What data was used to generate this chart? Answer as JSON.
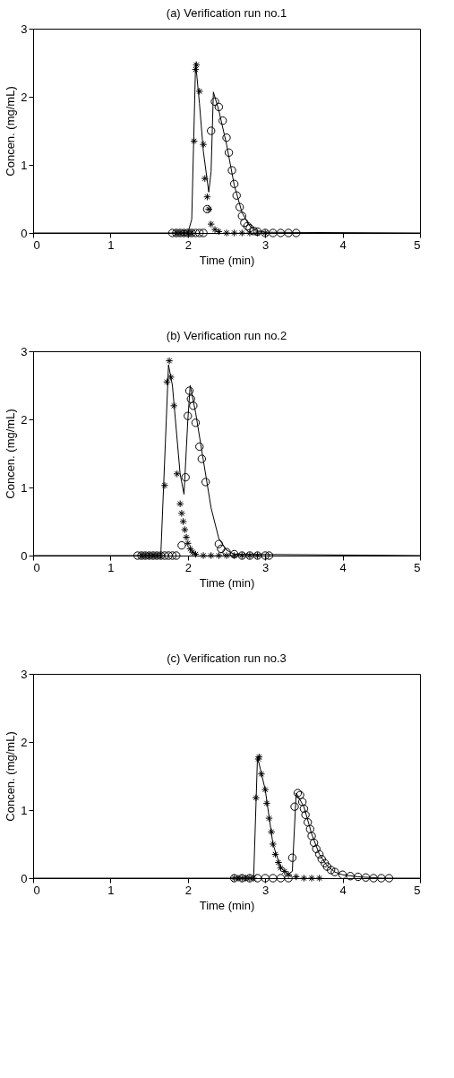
{
  "chart_data": [
    {
      "type": "scatter",
      "title": "(a) Verification run no.1",
      "xlabel": "Time (min)",
      "ylabel": "Concen. (mg/mL)",
      "xlim": [
        0,
        5
      ],
      "ylim": [
        0,
        3
      ],
      "xticks": [
        0,
        1,
        2,
        3,
        4,
        5
      ],
      "yticks": [
        0,
        1,
        2,
        3
      ],
      "grid": false,
      "series": [
        {
          "type": "line",
          "color": "#000000",
          "marker": "none",
          "line_style": "solid",
          "x": [
            0,
            2.0,
            2.05,
            2.1,
            2.15,
            2.2,
            2.27,
            2.3,
            2.33,
            2.4,
            2.5,
            2.6,
            2.7,
            2.8,
            2.9,
            3.0,
            5
          ],
          "values": [
            0,
            0,
            0.2,
            2.5,
            1.9,
            1.2,
            0.6,
            0.9,
            2.07,
            1.8,
            1.3,
            0.7,
            0.3,
            0.1,
            0.03,
            0.01,
            0
          ]
        },
        {
          "type": "scatter",
          "color": "#000000",
          "marker": "cross",
          "x": [
            1.85,
            1.9,
            1.95,
            2.0,
            2.05,
            2.08,
            2.1,
            2.11,
            2.15,
            2.2,
            2.22,
            2.25,
            2.27,
            2.3,
            2.35,
            2.4,
            2.5,
            2.6,
            2.7,
            2.8,
            2.9,
            3.0
          ],
          "values": [
            0,
            0,
            0,
            0,
            0,
            1.35,
            2.4,
            2.47,
            2.08,
            1.3,
            0.8,
            0.53,
            0.35,
            0.13,
            0.05,
            0.02,
            0,
            0,
            0,
            0,
            0,
            0
          ]
        },
        {
          "type": "scatter",
          "color": "#000000",
          "marker": "circle",
          "x": [
            1.8,
            1.85,
            1.9,
            1.95,
            2.0,
            2.05,
            2.1,
            2.15,
            2.2,
            2.25,
            2.3,
            2.35,
            2.4,
            2.45,
            2.5,
            2.53,
            2.57,
            2.6,
            2.63,
            2.67,
            2.7,
            2.73,
            2.77,
            2.8,
            2.85,
            2.9,
            3.0,
            3.1,
            3.2,
            3.3,
            3.4
          ],
          "values": [
            0,
            0,
            0,
            0,
            0,
            0,
            0,
            0,
            0,
            0.35,
            1.5,
            1.93,
            1.85,
            1.65,
            1.4,
            1.18,
            0.92,
            0.72,
            0.55,
            0.38,
            0.25,
            0.15,
            0.1,
            0.07,
            0.03,
            0.02,
            0,
            0,
            0,
            0,
            0
          ]
        }
      ]
    },
    {
      "type": "scatter",
      "title": "(b) Verification run no.2",
      "xlabel": "Time (min)",
      "ylabel": "Concen. (mg/mL)",
      "xlim": [
        0,
        5
      ],
      "ylim": [
        0,
        3
      ],
      "xticks": [
        0,
        1,
        2,
        3,
        4,
        5
      ],
      "yticks": [
        0,
        1,
        2,
        3
      ],
      "grid": false,
      "series": [
        {
          "type": "line",
          "color": "#000000",
          "marker": "none",
          "line_style": "solid",
          "x": [
            0,
            1.65,
            1.75,
            1.8,
            1.9,
            1.95,
            2.0,
            2.03,
            2.1,
            2.2,
            2.3,
            2.4,
            2.5,
            2.6,
            5
          ],
          "values": [
            0,
            0,
            2.8,
            2.5,
            1.2,
            0.9,
            2.0,
            2.5,
            2.1,
            1.4,
            0.7,
            0.25,
            0.08,
            0.02,
            0
          ]
        },
        {
          "type": "scatter",
          "color": "#000000",
          "marker": "cross",
          "x": [
            1.4,
            1.45,
            1.5,
            1.55,
            1.6,
            1.65,
            1.7,
            1.73,
            1.76,
            1.78,
            1.82,
            1.86,
            1.9,
            1.92,
            1.94,
            1.96,
            1.98,
            2.0,
            2.03,
            2.06,
            2.1,
            2.2,
            2.3,
            2.4,
            2.5,
            2.6,
            2.7,
            2.8,
            2.9
          ],
          "values": [
            0,
            0,
            0,
            0,
            0,
            0,
            1.03,
            2.55,
            2.86,
            2.62,
            2.2,
            1.2,
            0.76,
            0.62,
            0.5,
            0.38,
            0.27,
            0.18,
            0.1,
            0.05,
            0.02,
            0,
            0,
            0,
            0,
            0,
            0,
            0,
            0
          ]
        },
        {
          "type": "scatter",
          "color": "#000000",
          "marker": "circle",
          "x": [
            1.35,
            1.4,
            1.45,
            1.5,
            1.55,
            1.6,
            1.65,
            1.7,
            1.75,
            1.8,
            1.85,
            1.92,
            1.97,
            2.0,
            2.02,
            2.04,
            2.07,
            2.1,
            2.15,
            2.18,
            2.23,
            2.4,
            2.43,
            2.5,
            2.6,
            2.7,
            2.8,
            2.9,
            3.0,
            3.05
          ],
          "values": [
            0,
            0,
            0,
            0,
            0,
            0,
            0,
            0,
            0,
            0,
            0,
            0.15,
            1.15,
            2.05,
            2.42,
            2.3,
            2.2,
            1.95,
            1.6,
            1.42,
            1.08,
            0.17,
            0.1,
            0.05,
            0.02,
            0,
            0,
            0,
            0,
            0
          ]
        }
      ]
    },
    {
      "type": "scatter",
      "title": "(c) Verification run no.3",
      "xlabel": "Time (min)",
      "ylabel": "Concen. (mg/mL)",
      "xlim": [
        0,
        5
      ],
      "ylim": [
        0,
        3
      ],
      "xticks": [
        0,
        1,
        2,
        3,
        4,
        5
      ],
      "yticks": [
        0,
        1,
        2,
        3
      ],
      "grid": false,
      "series": [
        {
          "type": "line",
          "color": "#000000",
          "marker": "none",
          "line_style": "solid",
          "x": [
            0,
            2.85,
            2.9,
            3.0,
            3.1,
            3.2,
            3.3,
            3.35,
            3.4,
            3.5,
            3.6,
            3.7,
            3.8,
            3.9,
            4.0,
            4.2,
            4.5,
            5
          ],
          "values": [
            0,
            0,
            1.78,
            1.3,
            0.5,
            0.15,
            0.06,
            0.1,
            1.25,
            1.05,
            0.65,
            0.35,
            0.18,
            0.09,
            0.05,
            0.02,
            0,
            0
          ]
        },
        {
          "type": "scatter",
          "color": "#000000",
          "marker": "cross",
          "x": [
            2.6,
            2.65,
            2.7,
            2.75,
            2.8,
            2.85,
            2.88,
            2.91,
            2.92,
            2.95,
            3.0,
            3.02,
            3.05,
            3.08,
            3.1,
            3.13,
            3.17,
            3.2,
            3.25,
            3.3,
            3.4,
            3.5,
            3.6,
            3.7
          ],
          "values": [
            0,
            0,
            0,
            0,
            0,
            0,
            1.18,
            1.75,
            1.78,
            1.53,
            1.3,
            1.1,
            0.88,
            0.68,
            0.5,
            0.35,
            0.23,
            0.15,
            0.1,
            0.05,
            0.02,
            0,
            0,
            0
          ]
        },
        {
          "type": "scatter",
          "color": "#000000",
          "marker": "circle",
          "x": [
            2.6,
            2.7,
            2.8,
            2.9,
            3.0,
            3.1,
            3.2,
            3.3,
            3.35,
            3.38,
            3.42,
            3.45,
            3.48,
            3.5,
            3.52,
            3.55,
            3.58,
            3.6,
            3.63,
            3.66,
            3.7,
            3.73,
            3.77,
            3.8,
            3.85,
            3.9,
            4.0,
            4.1,
            4.2,
            4.3,
            4.4,
            4.5,
            4.6
          ],
          "values": [
            0,
            0,
            0,
            0,
            0,
            0,
            0,
            0,
            0.3,
            1.05,
            1.25,
            1.22,
            1.12,
            1.02,
            0.93,
            0.82,
            0.72,
            0.62,
            0.52,
            0.43,
            0.35,
            0.28,
            0.22,
            0.17,
            0.12,
            0.09,
            0.05,
            0.03,
            0.02,
            0.01,
            0,
            0,
            0
          ]
        }
      ]
    }
  ]
}
